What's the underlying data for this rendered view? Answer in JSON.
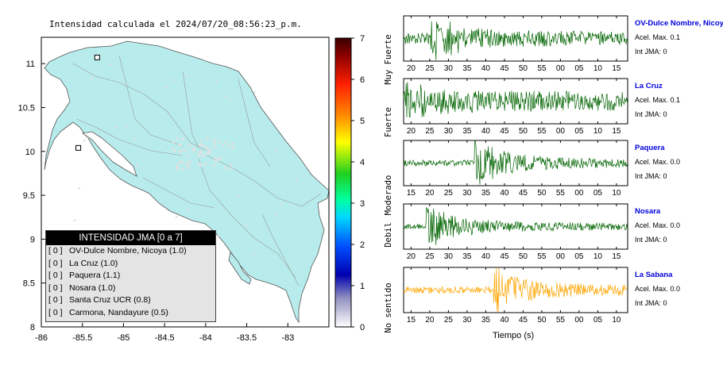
{
  "map": {
    "title": "Intensidad calculada el 2024/07/20_08:56:23_p.m.",
    "x_ticks": [
      "-86",
      "-85.5",
      "-85",
      "-84.5",
      "-84",
      "-83.5",
      "-83"
    ],
    "y_ticks": [
      "11",
      "10.5",
      "10",
      "9.5",
      "9",
      "8.5",
      "8"
    ],
    "land_color": "#b8ecec",
    "stations": [
      {
        "lon": -85.32,
        "lat": 11.07
      },
      {
        "lon": -85.55,
        "lat": 10.04
      }
    ]
  },
  "legend": {
    "header": "INTENSIDAD JMA [0 a 7]",
    "rows": [
      {
        "level": "[ 0 ]",
        "station": "OV-Dulce Nombre, Nicoya (1.0)"
      },
      {
        "level": "[ 0 ]",
        "station": "La Cruz (1.0)"
      },
      {
        "level": "[ 0 ]",
        "station": "Paquera (1.1)"
      },
      {
        "level": "[ 0 ]",
        "station": "Nosara (1.0)"
      },
      {
        "level": "[ 0 ]",
        "station": "Santa Cruz UCR (0.8)"
      },
      {
        "level": "[ 0 ]",
        "station": "Carmona, Nandayure (0.5)"
      }
    ]
  },
  "scale": {
    "ticks": [
      "7",
      "6",
      "5",
      "4",
      "3",
      "2",
      "1",
      "0"
    ],
    "categories": [
      "Muy Fuerte",
      "Fuerte",
      "Moderado",
      "Debil",
      "No sentido"
    ]
  },
  "traces": {
    "xlabel": "Tiempo (s)",
    "panels": [
      {
        "name": "OV-Dulce Nombre, Nicoya",
        "acel": "Acel. Max. 0.1",
        "int": "Int JMA: 0",
        "color": "#006400",
        "ticks": [
          "20",
          "25",
          "30",
          "35",
          "40",
          "45",
          "50",
          "55",
          "00",
          "05",
          "10",
          "15"
        ],
        "first": 20,
        "arrival": 25,
        "amp": 1.0,
        "noise": 0.28
      },
      {
        "name": "La Cruz",
        "acel": "Acel. Max. 0.1",
        "int": "Int JMA: 0",
        "color": "#006400",
        "ticks": [
          "20",
          "25",
          "30",
          "35",
          "40",
          "45",
          "50",
          "55",
          "00",
          "05",
          "10",
          "15"
        ],
        "first": 20,
        "arrival": 18,
        "amp": 0.45,
        "noise": 0.42
      },
      {
        "name": "Paquera",
        "acel": "Acel. Max. 0.0",
        "int": "Int JMA: 0",
        "color": "#006400",
        "ticks": [
          "15",
          "20",
          "25",
          "30",
          "35",
          "40",
          "45",
          "50",
          "55",
          "00",
          "05",
          "10"
        ],
        "first": 15,
        "arrival": 32,
        "amp": 1.0,
        "noise": 0.15
      },
      {
        "name": "Nosara",
        "acel": "Acel. Max. 0.0",
        "int": "Int JMA: 0",
        "color": "#006400",
        "ticks": [
          "20",
          "25",
          "30",
          "35",
          "40",
          "45",
          "50",
          "55",
          "00",
          "05",
          "10",
          "15"
        ],
        "first": 20,
        "arrival": 24,
        "amp": 1.0,
        "noise": 0.12
      },
      {
        "name": "La Sabana",
        "acel": "Acel. Max. 0.0",
        "int": "Int JMA: 0",
        "color": "#ffa500",
        "ticks": [
          "15",
          "20",
          "25",
          "30",
          "35",
          "40",
          "45",
          "50",
          "55",
          "00",
          "05",
          "10"
        ],
        "first": 15,
        "arrival": 37,
        "amp": 1.0,
        "noise": 0.18
      }
    ]
  }
}
